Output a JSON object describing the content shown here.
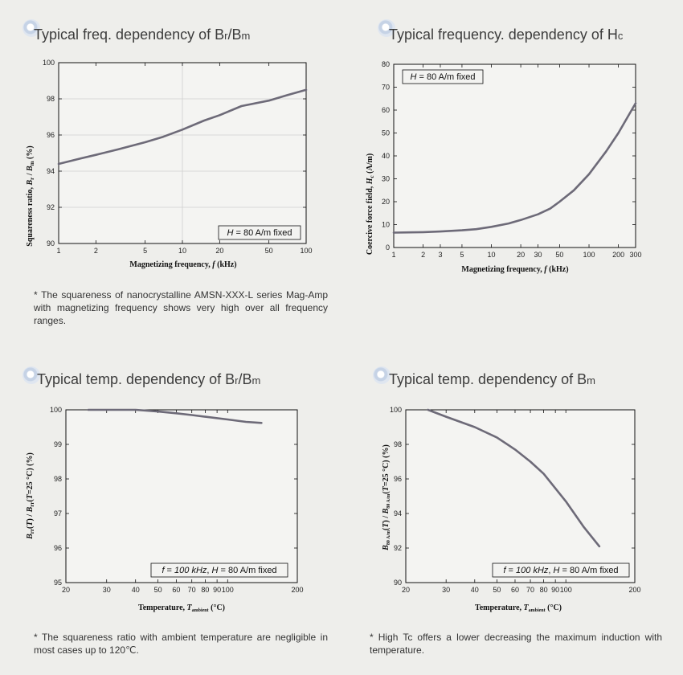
{
  "panels": [
    {
      "title_main": "Typical freq. dependency of B",
      "title_r": "r",
      "title_slash": "/B",
      "title_m": "m",
      "caption": "* The squareness of nanocrystalline AMSN-XXX-L series Mag-Amp with magnetizing frequency shows very high over all frequency ranges."
    },
    {
      "title_main": "Typical frequency. dependency of H",
      "title_c": "c"
    },
    {
      "title_main": "Typical temp. dependency of B",
      "title_r": "r",
      "title_slash": "/B",
      "title_m": "m",
      "caption": "* The squareness ratio with ambient temperature are negligible in most cases up to 120℃."
    },
    {
      "title_main": "Typical temp. dependency of B",
      "title_m": "m",
      "caption": "* High Tc offers a lower decreasing the maximum induction with temperature."
    }
  ],
  "chart_data": [
    {
      "type": "line",
      "xscale": "log",
      "xlim": [
        1,
        100
      ],
      "ylim": [
        90,
        100
      ],
      "xticks": [
        1,
        2,
        5,
        10,
        20,
        50,
        100
      ],
      "xtick_labels": [
        "1",
        "2",
        "5",
        "10",
        "20",
        "50",
        "100"
      ],
      "yticks": [
        90,
        92,
        94,
        96,
        98,
        100
      ],
      "ytick_labels": [
        "90",
        "92",
        "94",
        "96",
        "98",
        "100"
      ],
      "xlabel": "Magnetizing frequency, f (kHz)",
      "ylabel": "Squareness ratio, Br/Bm (%)",
      "annotation": "H = 80 A/m fixed",
      "annotation_pos": "bottom-right",
      "grid": "major x at 10, y at 98/96/94/92",
      "x": [
        1,
        1.5,
        2,
        3,
        5,
        7,
        10,
        15,
        20,
        30,
        50,
        70,
        100
      ],
      "y": [
        94.4,
        94.7,
        94.9,
        95.2,
        95.6,
        95.9,
        96.3,
        96.8,
        97.1,
        97.6,
        97.9,
        98.2,
        98.5
      ]
    },
    {
      "type": "line",
      "xscale": "log",
      "xlim": [
        1,
        300
      ],
      "ylim": [
        0,
        80
      ],
      "xticks": [
        1,
        2,
        3,
        5,
        10,
        20,
        30,
        50,
        100,
        200,
        300
      ],
      "xtick_labels": [
        "1",
        "2",
        "3",
        "5",
        "10",
        "20",
        "30",
        "50",
        "100",
        "200",
        "300"
      ],
      "yticks": [
        0,
        10,
        20,
        30,
        40,
        50,
        60,
        70,
        80
      ],
      "ytick_labels": [
        "0",
        "10",
        "20",
        "30",
        "40",
        "50",
        "60",
        "70",
        "80"
      ],
      "xlabel": "Magnetizing frequency, f (kHz)",
      "ylabel": "Coercive force field, Hc (A/m)",
      "annotation": "H = 80 A/m fixed",
      "annotation_pos": "top-left",
      "x": [
        1,
        2,
        3,
        5,
        7,
        10,
        15,
        20,
        30,
        40,
        50,
        70,
        100,
        150,
        200,
        300
      ],
      "y": [
        6.5,
        6.7,
        7,
        7.5,
        8,
        9,
        10.5,
        12,
        14.5,
        17,
        20,
        25,
        32,
        42,
        50,
        63
      ]
    },
    {
      "type": "line",
      "xscale": "log",
      "xlim": [
        20,
        200
      ],
      "ylim": [
        95,
        100
      ],
      "xticks": [
        20,
        30,
        40,
        50,
        60,
        70,
        80,
        90,
        100,
        200
      ],
      "xtick_labels": [
        "20",
        "30",
        "40",
        "50",
        "60",
        "70",
        "80",
        "90",
        "100",
        "200"
      ],
      "yticks": [
        95,
        96,
        97,
        98,
        99,
        100
      ],
      "ytick_labels": [
        "95",
        "96",
        "97",
        "98",
        "99",
        "100"
      ],
      "xlabel": "Temperature, Tambient (°C)",
      "ylabel": "Brr(T) / Brr(T=25°C) (%)",
      "annotation": "f = 100 kHz, H = 80 A/m fixed",
      "annotation_pos": "bottom-right",
      "x": [
        25,
        30,
        40,
        50,
        60,
        70,
        80,
        100,
        120,
        140
      ],
      "y": [
        100,
        100,
        100,
        99.95,
        99.9,
        99.85,
        99.8,
        99.72,
        99.65,
        99.62
      ]
    },
    {
      "type": "line",
      "xscale": "log",
      "xlim": [
        20,
        200
      ],
      "ylim": [
        90,
        100
      ],
      "xticks": [
        20,
        30,
        40,
        50,
        60,
        70,
        80,
        90,
        100,
        200
      ],
      "xtick_labels": [
        "20",
        "30",
        "40",
        "50",
        "60",
        "70",
        "80",
        "90",
        "100",
        "200"
      ],
      "yticks": [
        90,
        92,
        94,
        96,
        98,
        100
      ],
      "ytick_labels": [
        "90",
        "92",
        "94",
        "96",
        "98",
        "100"
      ],
      "xlabel": "Temperature, Tambient (°C)",
      "ylabel": "B80 A/m(T) / B80 A/m(T=25°C) (%)",
      "annotation": "f = 100 kHz, H = 80 A/m fixed",
      "annotation_pos": "bottom-right",
      "x": [
        25,
        30,
        40,
        50,
        60,
        70,
        80,
        100,
        120,
        140
      ],
      "y": [
        100,
        99.6,
        99,
        98.4,
        97.7,
        97,
        96.3,
        94.7,
        93.2,
        92.1
      ]
    }
  ]
}
